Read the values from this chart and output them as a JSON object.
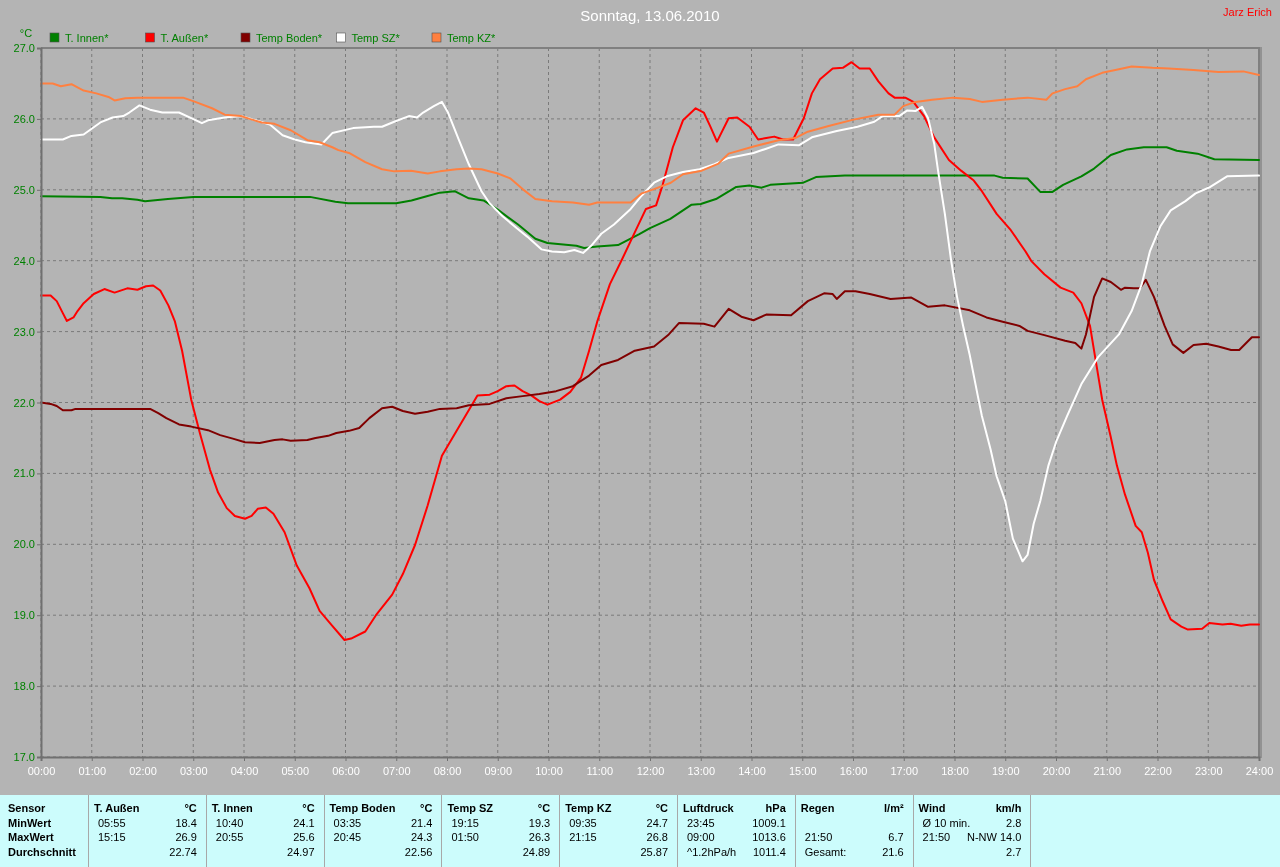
{
  "chart_data": {
    "type": "line",
    "title": "Sonntag, 13.06.2010",
    "ylabel": "°C",
    "xlim": [
      0,
      24
    ],
    "xticks": [
      {
        "value": 0,
        "label": "00:00"
      },
      {
        "value": 1,
        "label": "01:00"
      },
      {
        "value": 2,
        "label": "02:00"
      },
      {
        "value": 3,
        "label": "03:00"
      },
      {
        "value": 4,
        "label": "04:00"
      },
      {
        "value": 5,
        "label": "05:00"
      },
      {
        "value": 6,
        "label": "06:00"
      },
      {
        "value": 7,
        "label": "07:00"
      },
      {
        "value": 8,
        "label": "08:00"
      },
      {
        "value": 9,
        "label": "09:00"
      },
      {
        "value": 10,
        "label": "10:00"
      },
      {
        "value": 11,
        "label": "11:00"
      },
      {
        "value": 12,
        "label": "12:00"
      },
      {
        "value": 13,
        "label": "13:00"
      },
      {
        "value": 14,
        "label": "14:00"
      },
      {
        "value": 15,
        "label": "15:00"
      },
      {
        "value": 16,
        "label": "16:00"
      },
      {
        "value": 17,
        "label": "17:00"
      },
      {
        "value": 18,
        "label": "18:00"
      },
      {
        "value": 19,
        "label": "19:00"
      },
      {
        "value": 20,
        "label": "20:00"
      },
      {
        "value": 21,
        "label": "21:00"
      },
      {
        "value": 22,
        "label": "22:00"
      },
      {
        "value": 23,
        "label": "23:00"
      },
      {
        "value": 24,
        "label": "24:00"
      }
    ],
    "ylim": [
      17,
      27
    ],
    "yticks": [
      {
        "value": 17,
        "label": "17.0"
      },
      {
        "value": 18,
        "label": "18.0"
      },
      {
        "value": 19,
        "label": "19.0"
      },
      {
        "value": 20,
        "label": "20.0"
      },
      {
        "value": 21,
        "label": "21.0"
      },
      {
        "value": 22,
        "label": "22.0"
      },
      {
        "value": 23,
        "label": "23.0"
      },
      {
        "value": 24,
        "label": "24.0"
      },
      {
        "value": 25,
        "label": "25.0"
      },
      {
        "value": 26,
        "label": "26.0"
      },
      {
        "value": 27,
        "label": "27.0"
      }
    ],
    "grid": true,
    "legend": "top left",
    "series": [
      {
        "name": "T. Innen*",
        "color": "#008000",
        "x": [
          0,
          1.17,
          1.4,
          1.6,
          1.9,
          2.05,
          2.5,
          3.0,
          5.3,
          5.8,
          6.05,
          7.0,
          7.3,
          7.6,
          7.86,
          8.15,
          8.43,
          8.72,
          9.0,
          9.4,
          9.74,
          9.98,
          10.55,
          10.7,
          10.96,
          11.37,
          11.78,
          12.0,
          12.4,
          12.82,
          13.0,
          13.3,
          13.7,
          13.96,
          14.2,
          14.37,
          15.02,
          15.27,
          15.84,
          18.79,
          18.95,
          19.44,
          19.69,
          19.93,
          20.14,
          20.5,
          20.75,
          21.08,
          21.4,
          21.73,
          22.18,
          22.38,
          22.79,
          23.12,
          24
        ],
        "values": [
          24.91,
          24.9,
          24.88,
          24.88,
          24.86,
          24.84,
          24.87,
          24.9,
          24.9,
          24.83,
          24.81,
          24.81,
          24.85,
          24.91,
          24.96,
          24.98,
          24.88,
          24.85,
          24.72,
          24.51,
          24.31,
          24.25,
          24.21,
          24.18,
          24.2,
          24.22,
          24.37,
          24.46,
          24.59,
          24.79,
          24.8,
          24.87,
          25.04,
          25.06,
          25.03,
          25.07,
          25.1,
          25.18,
          25.2,
          25.2,
          25.17,
          25.16,
          24.97,
          24.97,
          25.07,
          25.19,
          25.3,
          25.49,
          25.57,
          25.6,
          25.6,
          25.55,
          25.51,
          25.43,
          25.42
        ]
      },
      {
        "name": "T. Außen*",
        "color": "#ff0000",
        "x": [
          0,
          0.19,
          0.31,
          0.43,
          0.51,
          0.64,
          0.72,
          0.84,
          1.04,
          1.25,
          1.45,
          1.7,
          1.9,
          2.07,
          2.21,
          2.35,
          2.51,
          2.64,
          2.78,
          2.96,
          3.13,
          3.33,
          3.49,
          3.66,
          3.82,
          4.02,
          4.15,
          4.27,
          4.43,
          4.58,
          4.8,
          5.04,
          5.29,
          5.49,
          5.74,
          5.98,
          6.11,
          6.39,
          6.6,
          6.92,
          7.13,
          7.37,
          7.62,
          7.9,
          8.19,
          8.51,
          8.6,
          8.84,
          9.0,
          9.17,
          9.33,
          9.49,
          9.66,
          9.82,
          9.98,
          10.23,
          10.43,
          10.64,
          10.8,
          10.96,
          11.21,
          11.45,
          11.7,
          11.92,
          12.12,
          12.25,
          12.45,
          12.65,
          12.9,
          13.06,
          13.19,
          13.32,
          13.55,
          13.72,
          13.96,
          14.13,
          14.29,
          14.45,
          14.62,
          14.82,
          15.03,
          15.19,
          15.35,
          15.6,
          15.8,
          15.97,
          16.13,
          16.33,
          16.5,
          16.7,
          16.82,
          17.03,
          17.19,
          17.4,
          17.6,
          17.89,
          18.13,
          18.38,
          18.54,
          18.83,
          19.11,
          19.4,
          19.52,
          19.77,
          20.09,
          20.34,
          20.5,
          20.67,
          20.79,
          20.91,
          21.08,
          21.2,
          21.36,
          21.57,
          21.69,
          21.81,
          21.93,
          22.1,
          22.26,
          22.47,
          22.59,
          22.88,
          23.02,
          23.28,
          23.44,
          23.65,
          23.82,
          24
        ],
        "values": [
          23.51,
          23.51,
          23.43,
          23.26,
          23.15,
          23.2,
          23.29,
          23.4,
          23.53,
          23.6,
          23.55,
          23.61,
          23.59,
          23.64,
          23.65,
          23.58,
          23.37,
          23.14,
          22.73,
          22.04,
          21.57,
          21.05,
          20.73,
          20.51,
          20.4,
          20.36,
          20.4,
          20.5,
          20.52,
          20.43,
          20.17,
          19.7,
          19.38,
          19.06,
          18.85,
          18.65,
          18.67,
          18.77,
          19.0,
          19.29,
          19.58,
          19.99,
          20.55,
          21.25,
          21.6,
          21.99,
          22.1,
          22.11,
          22.16,
          22.23,
          22.24,
          22.16,
          22.1,
          22.02,
          21.97,
          22.04,
          22.15,
          22.35,
          22.73,
          23.14,
          23.67,
          24.02,
          24.4,
          24.73,
          24.78,
          25.07,
          25.6,
          25.98,
          26.15,
          26.09,
          25.89,
          25.68,
          26.01,
          26.02,
          25.89,
          25.71,
          25.73,
          25.75,
          25.71,
          25.71,
          26.01,
          26.36,
          26.56,
          26.71,
          26.72,
          26.8,
          26.71,
          26.71,
          26.53,
          26.36,
          26.3,
          26.3,
          26.24,
          26.04,
          25.74,
          25.42,
          25.27,
          25.13,
          24.98,
          24.66,
          24.43,
          24.13,
          23.99,
          23.81,
          23.62,
          23.55,
          23.4,
          23.08,
          22.56,
          22.04,
          21.51,
          21.11,
          20.7,
          20.26,
          20.17,
          19.88,
          19.5,
          19.2,
          18.94,
          18.84,
          18.8,
          18.81,
          18.89,
          18.87,
          18.88,
          18.85,
          18.87,
          18.87
        ]
      },
      {
        "name": "Temp Boden*",
        "color": "#800000",
        "x": [
          0,
          0.19,
          0.31,
          0.43,
          0.6,
          0.68,
          2.15,
          2.31,
          2.47,
          2.72,
          2.96,
          3.29,
          3.53,
          3.78,
          4.02,
          4.31,
          4.6,
          4.76,
          4.92,
          5.25,
          5.41,
          5.66,
          5.82,
          6.07,
          6.27,
          6.47,
          6.72,
          6.92,
          7.13,
          7.37,
          7.62,
          7.86,
          8.19,
          8.43,
          8.84,
          9.17,
          9.49,
          9.82,
          10.15,
          10.48,
          10.8,
          11.04,
          11.37,
          11.7,
          12.08,
          12.37,
          12.57,
          13.06,
          13.27,
          13.55,
          13.8,
          14.04,
          14.29,
          14.78,
          15.11,
          15.43,
          15.6,
          15.68,
          15.84,
          16.05,
          16.33,
          16.74,
          17.15,
          17.48,
          17.81,
          18.3,
          18.63,
          18.95,
          19.28,
          19.44,
          19.77,
          20.18,
          20.38,
          20.5,
          20.59,
          20.75,
          20.91,
          21.08,
          21.28,
          21.36,
          21.53,
          21.65,
          21.77,
          21.93,
          22.14,
          22.3,
          22.51,
          22.71,
          22.96,
          23.2,
          23.45,
          23.61,
          23.86,
          24
        ],
        "values": [
          22.0,
          21.98,
          21.95,
          21.89,
          21.89,
          21.91,
          21.91,
          21.85,
          21.78,
          21.69,
          21.66,
          21.61,
          21.54,
          21.49,
          21.44,
          21.43,
          21.47,
          21.48,
          21.46,
          21.47,
          21.5,
          21.53,
          21.57,
          21.6,
          21.64,
          21.78,
          21.92,
          21.94,
          21.88,
          21.84,
          21.87,
          21.91,
          21.92,
          21.96,
          21.98,
          22.06,
          22.09,
          22.12,
          22.16,
          22.23,
          22.38,
          22.53,
          22.6,
          22.73,
          22.79,
          22.96,
          23.12,
          23.11,
          23.07,
          23.32,
          23.21,
          23.16,
          23.24,
          23.23,
          23.43,
          23.54,
          23.53,
          23.46,
          23.57,
          23.57,
          23.53,
          23.46,
          23.48,
          23.35,
          23.37,
          23.3,
          23.2,
          23.14,
          23.08,
          23.01,
          22.95,
          22.87,
          22.84,
          22.76,
          22.96,
          23.49,
          23.75,
          23.7,
          23.59,
          23.62,
          23.61,
          23.61,
          23.73,
          23.49,
          23.08,
          22.82,
          22.7,
          22.81,
          22.83,
          22.79,
          22.74,
          22.74,
          22.92,
          22.92
        ]
      },
      {
        "name": "Temp SZ*",
        "color": "#ffffff",
        "x": [
          0,
          0.43,
          0.6,
          0.84,
          1.17,
          1.41,
          1.62,
          1.74,
          1.94,
          2.15,
          2.39,
          2.72,
          2.96,
          3.17,
          3.29,
          3.62,
          3.94,
          4.19,
          4.51,
          4.76,
          5.0,
          5.21,
          5.53,
          5.62,
          5.74,
          6.15,
          6.56,
          6.72,
          6.96,
          7.25,
          7.41,
          7.53,
          7.74,
          7.9,
          8.02,
          8.23,
          8.43,
          8.68,
          8.84,
          9.09,
          9.37,
          9.58,
          9.86,
          10.07,
          10.31,
          10.51,
          10.68,
          10.84,
          11.04,
          11.29,
          11.62,
          11.84,
          12.08,
          12.33,
          12.65,
          12.98,
          13.27,
          13.55,
          14.04,
          14.29,
          14.53,
          14.94,
          15.19,
          15.68,
          16.09,
          16.42,
          16.58,
          16.91,
          17.07,
          17.23,
          17.36,
          17.48,
          17.6,
          17.68,
          17.81,
          17.93,
          18.05,
          18.17,
          18.3,
          18.46,
          18.54,
          18.71,
          18.83,
          19.0,
          19.15,
          19.34,
          19.44,
          19.56,
          19.69,
          19.85,
          20.01,
          20.22,
          20.5,
          20.83,
          21.24,
          21.49,
          21.69,
          21.85,
          22.06,
          22.26,
          22.55,
          22.75,
          23.04,
          23.37,
          24
        ],
        "values": [
          25.71,
          25.71,
          25.76,
          25.78,
          25.95,
          26.02,
          26.04,
          26.09,
          26.19,
          26.13,
          26.09,
          26.09,
          26.01,
          25.94,
          25.98,
          26.02,
          26.04,
          25.99,
          25.92,
          25.77,
          25.71,
          25.67,
          25.64,
          25.71,
          25.8,
          25.87,
          25.89,
          25.89,
          25.96,
          26.04,
          26.02,
          26.09,
          26.18,
          26.24,
          26.09,
          25.71,
          25.36,
          24.98,
          24.81,
          24.63,
          24.46,
          24.34,
          24.16,
          24.13,
          24.12,
          24.15,
          24.11,
          24.21,
          24.38,
          24.51,
          24.73,
          24.92,
          25.1,
          25.19,
          25.25,
          25.29,
          25.36,
          25.45,
          25.52,
          25.58,
          25.64,
          25.63,
          25.74,
          25.83,
          25.89,
          25.96,
          26.04,
          26.04,
          26.12,
          26.11,
          26.17,
          26.01,
          25.65,
          25.25,
          24.66,
          24.02,
          23.49,
          23.08,
          22.67,
          22.09,
          21.81,
          21.34,
          20.96,
          20.61,
          20.08,
          19.76,
          19.85,
          20.29,
          20.61,
          21.11,
          21.46,
          21.81,
          22.26,
          22.64,
          22.96,
          23.29,
          23.67,
          24.13,
          24.49,
          24.71,
          24.84,
          24.95,
          25.04,
          25.19,
          25.2
        ]
      },
      {
        "name": "Temp KZ*",
        "color": "#ff8040",
        "x": [
          0,
          0.23,
          0.39,
          0.6,
          0.84,
          1.09,
          1.33,
          1.45,
          1.66,
          1.9,
          2.8,
          3.04,
          3.37,
          3.62,
          3.94,
          4.11,
          4.35,
          4.6,
          4.92,
          5.25,
          5.49,
          5.74,
          5.86,
          6.07,
          6.39,
          6.72,
          6.96,
          7.29,
          7.62,
          7.86,
          8.19,
          8.43,
          8.68,
          9.0,
          9.25,
          9.49,
          9.74,
          10.07,
          10.48,
          10.8,
          10.96,
          11.62,
          11.84,
          12.08,
          12.41,
          12.65,
          13.02,
          13.35,
          13.55,
          14.04,
          14.53,
          14.86,
          15.11,
          15.52,
          16.01,
          16.5,
          16.82,
          16.99,
          17.23,
          17.56,
          17.97,
          18.3,
          18.54,
          18.95,
          19.44,
          19.81,
          19.93,
          20.18,
          20.42,
          20.59,
          20.91,
          21.24,
          21.49,
          21.9,
          22.22,
          22.71,
          23.2,
          23.69,
          24
        ],
        "values": [
          26.5,
          26.5,
          26.46,
          26.49,
          26.4,
          26.36,
          26.31,
          26.26,
          26.29,
          26.3,
          26.3,
          26.24,
          26.15,
          26.06,
          26.04,
          26.0,
          25.95,
          25.93,
          25.84,
          25.7,
          25.67,
          25.6,
          25.56,
          25.52,
          25.39,
          25.29,
          25.26,
          25.27,
          25.23,
          25.26,
          25.29,
          25.3,
          25.29,
          25.23,
          25.16,
          25.01,
          24.87,
          24.84,
          24.82,
          24.79,
          24.82,
          24.82,
          24.95,
          25.01,
          25.1,
          25.22,
          25.27,
          25.37,
          25.51,
          25.61,
          25.7,
          25.73,
          25.82,
          25.9,
          25.99,
          26.06,
          26.06,
          26.18,
          26.24,
          26.27,
          26.3,
          26.28,
          26.24,
          26.27,
          26.3,
          26.27,
          26.36,
          26.42,
          26.46,
          26.56,
          26.65,
          26.7,
          26.74,
          26.72,
          26.71,
          26.69,
          26.66,
          26.67,
          26.62
        ]
      }
    ],
    "annotations": [
      "Jarz Erich",
      "Sensor",
      "T. Außen",
      "°C",
      "T. Innen",
      "°C",
      "Temp Boden",
      "°C",
      "Temp SZ",
      "°C",
      "Temp KZ",
      "°C",
      "Luftdruck",
      "hPa",
      "Regen",
      "l/m²",
      "Wind",
      "km/h",
      "MinWert",
      "05:55",
      "18.4",
      "10:40",
      "24.1",
      "03:35",
      "21.4",
      "19:15",
      "19.3",
      "09:35",
      "24.7",
      "23:45",
      "1009.1",
      "Ø 10 min.",
      "2.8",
      "MaxWert",
      "15:15",
      "26.9",
      "20:55",
      "25.6",
      "20:45",
      "24.3",
      "01:50",
      "26.3",
      "21:15",
      "26.8",
      "09:00",
      "1013.6",
      "21:50",
      "6.7",
      "21:50",
      "N-NW 14.0",
      "Durchschnitt",
      "22.74",
      "24.97",
      "22.56",
      "24.89",
      "25.87",
      "^1.2hPa/h",
      "1011.4",
      "Gesamt:",
      "21.6",
      "2.7"
    ]
  }
}
